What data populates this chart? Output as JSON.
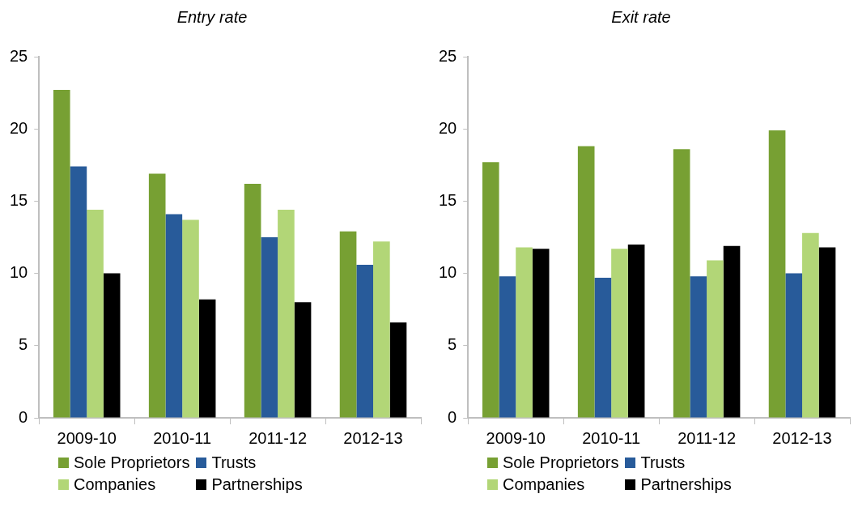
{
  "chart_data": [
    {
      "type": "bar",
      "title": "Entry rate",
      "categories": [
        "2009-10",
        "2010-11",
        "2011-12",
        "2012-13"
      ],
      "series": [
        {
          "name": "Sole Proprietors",
          "color": "#77a033",
          "values": [
            22.7,
            16.9,
            16.2,
            12.9
          ]
        },
        {
          "name": "Trusts",
          "color": "#285b9a",
          "values": [
            17.4,
            14.1,
            12.5,
            10.6
          ]
        },
        {
          "name": "Companies",
          "color": "#b2d677",
          "values": [
            14.4,
            13.7,
            14.4,
            12.2
          ]
        },
        {
          "name": "Partnerships",
          "color": "#000000",
          "values": [
            10.0,
            8.2,
            8.0,
            6.6
          ]
        }
      ],
      "ylim": [
        0,
        25
      ],
      "yticks": [
        0,
        5,
        10,
        15,
        20,
        25
      ],
      "grid": false,
      "legend": "bottom"
    },
    {
      "type": "bar",
      "title": "Exit rate",
      "categories": [
        "2009-10",
        "2010-11",
        "2011-12",
        "2012-13"
      ],
      "series": [
        {
          "name": "Sole Proprietors",
          "color": "#77a033",
          "values": [
            17.7,
            18.8,
            18.6,
            19.9
          ]
        },
        {
          "name": "Trusts",
          "color": "#285b9a",
          "values": [
            9.8,
            9.7,
            9.8,
            10.0
          ]
        },
        {
          "name": "Companies",
          "color": "#b2d677",
          "values": [
            11.8,
            11.7,
            10.9,
            12.8
          ]
        },
        {
          "name": "Partnerships",
          "color": "#000000",
          "values": [
            11.7,
            12.0,
            11.9,
            11.8
          ]
        }
      ],
      "ylim": [
        0,
        25
      ],
      "yticks": [
        0,
        5,
        10,
        15,
        20,
        25
      ],
      "grid": false,
      "legend": "bottom"
    }
  ]
}
